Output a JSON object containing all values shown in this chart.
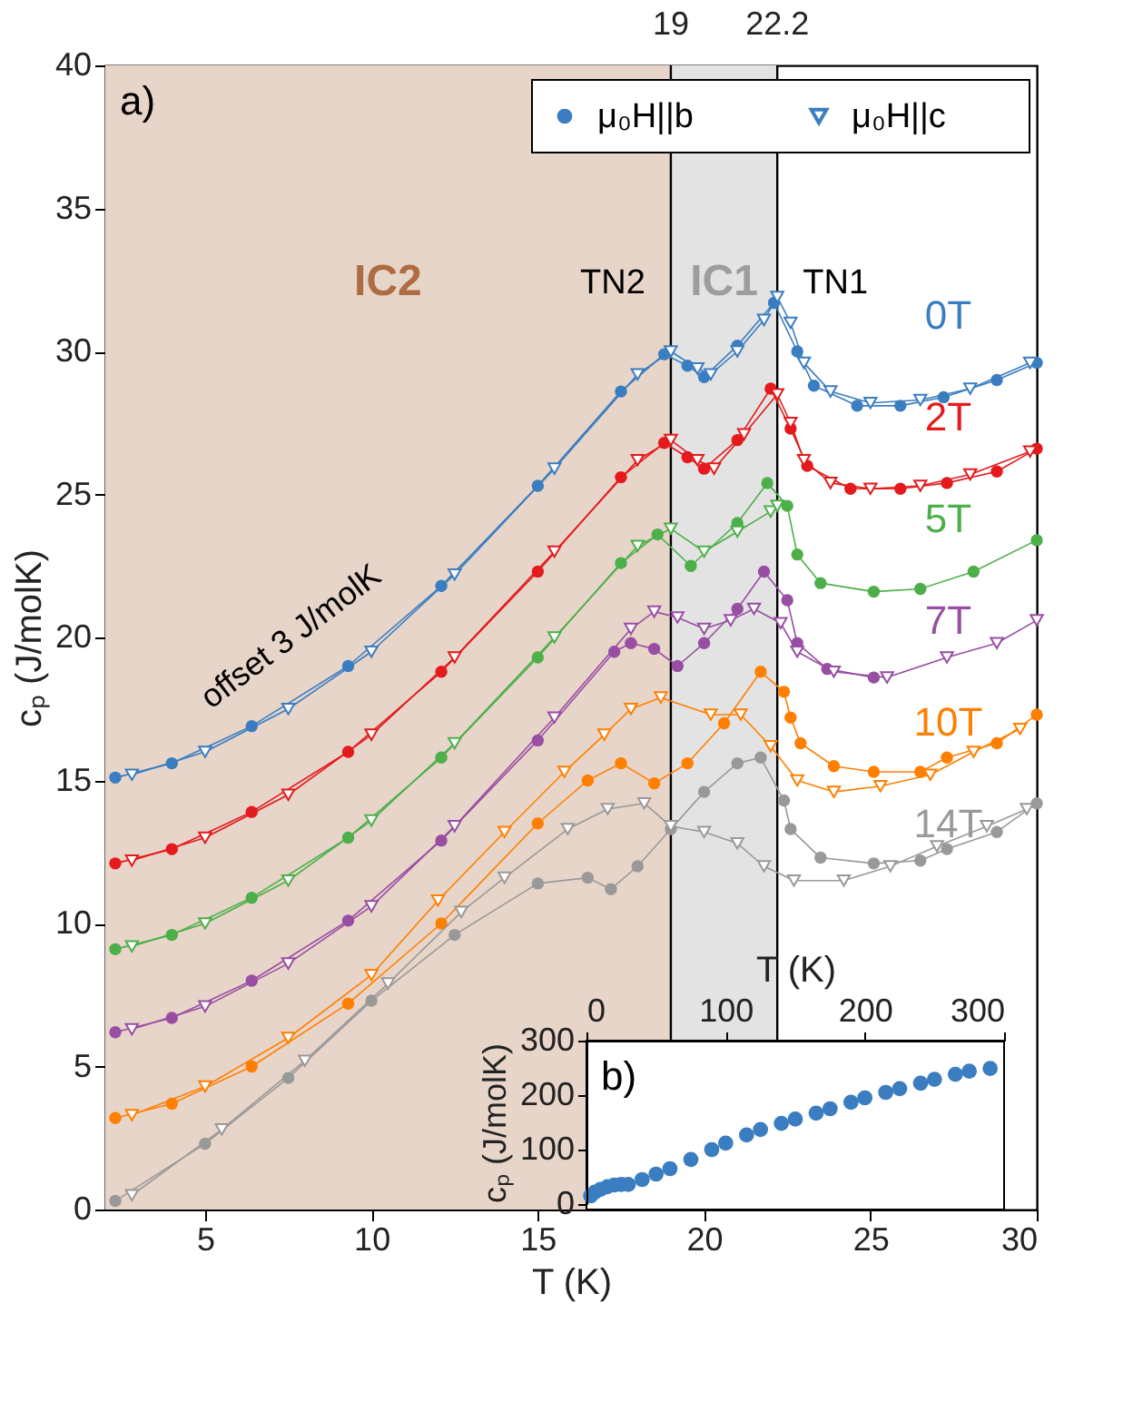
{
  "chart_data": [
    {
      "type": "line",
      "title": "a)",
      "xlabel": "T (K)",
      "ylabel": "cₚ (J/molK)",
      "xlim": [
        2,
        30
      ],
      "xticks": [
        5,
        10,
        15,
        20,
        25,
        30
      ],
      "ylim": [
        0,
        40
      ],
      "yticks": [
        0,
        5,
        10,
        15,
        20,
        25,
        30,
        35,
        40
      ],
      "legend": "top right",
      "series": [
        {
          "name": "μ₀H||b",
          "color": "#3a7dc0",
          "marker": "circle",
          "x": [
            2.3,
            4,
            6.4,
            9.3,
            12.1,
            15,
            17.5,
            18.8,
            19.5,
            20.0,
            21,
            22.1,
            22.8,
            23.3,
            24.6,
            25.9,
            27.2,
            28.8,
            30
          ],
          "values": [
            15.1,
            15.6,
            16.9,
            19.0,
            21.8,
            25.3,
            28.6,
            29.9,
            29.5,
            29.1,
            30.2,
            31.7,
            30.0,
            28.8,
            28.1,
            28.1,
            28.4,
            29.0,
            29.6
          ]
        },
        {
          "name": "μ₀H||c",
          "color": "#3a7dc0",
          "marker": "triangle",
          "x": [
            2.8,
            5,
            7.5,
            10,
            12.5,
            15.5,
            18,
            19,
            19.8,
            20.2,
            21,
            21.8,
            22.2,
            22.6,
            23,
            23.8,
            25,
            26.5,
            28,
            29.8
          ],
          "values": [
            15.2,
            16.0,
            17.5,
            19.5,
            22.2,
            25.9,
            29.2,
            30.0,
            29.4,
            29.2,
            30.0,
            31.1,
            31.9,
            31.0,
            29.6,
            28.6,
            28.2,
            28.3,
            28.7,
            29.6
          ]
        },
        {
          "color": "#e41a1c",
          "marker": "circle",
          "x": [
            2.3,
            4,
            6.4,
            9.3,
            12.1,
            15,
            17.5,
            18.8,
            19.5,
            20,
            21,
            22,
            22.6,
            23.1,
            24.4,
            25.9,
            27.3,
            28.8,
            30
          ],
          "values": [
            12.1,
            12.6,
            13.9,
            16.0,
            18.8,
            22.3,
            25.6,
            26.8,
            26.3,
            25.9,
            26.9,
            28.7,
            27.3,
            26.0,
            25.2,
            25.2,
            25.4,
            25.8,
            26.6
          ]
        },
        {
          "color": "#e41a1c",
          "marker": "triangle",
          "x": [
            2.8,
            5,
            7.5,
            10,
            12.5,
            15.5,
            18,
            19,
            19.8,
            20.3,
            21.2,
            22.2,
            22.6,
            23,
            23.8,
            25,
            26.5,
            28,
            29.8
          ],
          "values": [
            12.2,
            13.0,
            14.5,
            16.6,
            19.3,
            23.0,
            26.2,
            26.9,
            26.2,
            25.9,
            27.1,
            28.5,
            27.5,
            26.2,
            25.4,
            25.2,
            25.3,
            25.7,
            26.5
          ]
        },
        {
          "color": "#4daf4a",
          "marker": "circle",
          "x": [
            2.3,
            4,
            6.4,
            9.3,
            12.1,
            15,
            17.5,
            18.6,
            19.6,
            21,
            21.9,
            22.5,
            22.8,
            23.5,
            25.1,
            26.5,
            28.1,
            30
          ],
          "values": [
            9.1,
            9.6,
            10.9,
            13.0,
            15.8,
            19.3,
            22.6,
            23.6,
            22.5,
            24.0,
            25.4,
            24.6,
            22.9,
            21.9,
            21.6,
            21.7,
            22.3,
            23.4
          ]
        },
        {
          "color": "#4daf4a",
          "marker": "triangle",
          "x": [
            2.8,
            5,
            7.5,
            10,
            12.5,
            15.5,
            18,
            19,
            20,
            21,
            22,
            22.2
          ],
          "values": [
            9.2,
            10.0,
            11.5,
            13.6,
            16.3,
            20.0,
            23.2,
            23.8,
            23.0,
            23.7,
            24.4,
            24.6
          ]
        },
        {
          "color": "#984ea3",
          "marker": "circle",
          "x": [
            2.3,
            4,
            6.4,
            9.3,
            12.1,
            15,
            17.3,
            17.8,
            18.5,
            19.2,
            20,
            21,
            21.8,
            22.5,
            22.8,
            23.7,
            25.1
          ],
          "values": [
            6.2,
            6.7,
            8.0,
            10.1,
            12.9,
            16.4,
            19.5,
            19.8,
            19.6,
            19.0,
            19.8,
            21.0,
            22.3,
            21.3,
            19.8,
            18.9,
            18.6
          ]
        },
        {
          "color": "#984ea3",
          "marker": "triangle",
          "x": [
            2.8,
            5,
            7.5,
            10,
            12.5,
            15.5,
            17.8,
            18.5,
            19.2,
            20,
            20.8,
            21.5,
            22.3,
            22.8,
            23.9,
            25.5,
            27.3,
            28.8,
            30
          ],
          "values": [
            6.3,
            7.1,
            8.6,
            10.6,
            13.4,
            17.2,
            20.3,
            20.9,
            20.7,
            20.3,
            20.6,
            21.0,
            20.5,
            19.5,
            18.8,
            18.6,
            19.3,
            19.8,
            20.6
          ]
        },
        {
          "color": "#ff7f00",
          "marker": "circle",
          "x": [
            2.3,
            4,
            6.4,
            9.3,
            12.1,
            15,
            16.5,
            17.5,
            18.5,
            19.5,
            20.6,
            21.7,
            22.4,
            22.6,
            22.9,
            23.9,
            25.1,
            26.5,
            27.3,
            28.8,
            30
          ],
          "values": [
            3.2,
            3.7,
            5.0,
            7.2,
            10.0,
            13.5,
            15.0,
            15.6,
            14.9,
            15.6,
            17.0,
            18.8,
            18.1,
            17.2,
            16.3,
            15.5,
            15.3,
            15.3,
            15.8,
            16.3,
            17.3
          ]
        },
        {
          "color": "#ff7f00",
          "marker": "triangle",
          "x": [
            2.8,
            5,
            7.5,
            10,
            12,
            14,
            15.8,
            17,
            17.8,
            18.7,
            20.2,
            21.1,
            22,
            22.8,
            23.9,
            25.3,
            26.8,
            28.1,
            29.5
          ],
          "values": [
            3.3,
            4.3,
            6.0,
            8.2,
            10.8,
            13.2,
            15.3,
            16.6,
            17.5,
            17.9,
            17.3,
            17.3,
            16.2,
            15.0,
            14.6,
            14.8,
            15.2,
            16.0,
            16.8
          ]
        },
        {
          "color": "#999999",
          "marker": "circle",
          "x": [
            2.3,
            5,
            7.5,
            10,
            12.5,
            15,
            16.5,
            17.2,
            18,
            19,
            20,
            21,
            21.7,
            22.4,
            22.6,
            23.5,
            25.1,
            26.5,
            27.3,
            28.8,
            30
          ],
          "values": [
            0.3,
            2.3,
            4.6,
            7.3,
            9.6,
            11.4,
            11.6,
            11.2,
            12.0,
            13.3,
            14.6,
            15.6,
            15.8,
            14.3,
            13.3,
            12.3,
            12.1,
            12.2,
            12.6,
            13.2,
            14.2
          ]
        },
        {
          "color": "#999999",
          "marker": "triangle",
          "x": [
            2.8,
            5.5,
            8,
            10.5,
            12.7,
            14,
            15.9,
            17.1,
            18.2,
            19,
            20,
            21,
            21.8,
            22.7,
            24.2,
            25.6,
            27,
            28.5,
            29.7
          ],
          "values": [
            0.5,
            2.8,
            5.2,
            7.9,
            10.4,
            11.6,
            13.3,
            14.0,
            14.2,
            13.4,
            13.2,
            12.8,
            12.0,
            11.5,
            11.5,
            12.0,
            12.7,
            13.4,
            14.0
          ]
        }
      ],
      "bands": [
        {
          "axis": "x",
          "from": 2,
          "to": 19,
          "label": "IC2",
          "color": "#e8d5c9"
        },
        {
          "axis": "x",
          "from": 19,
          "to": 22.2,
          "label": "IC1",
          "color": "#e3e3e3"
        }
      ],
      "ref_lines": [
        {
          "axis": "x",
          "value": 19,
          "label": "19"
        },
        {
          "axis": "x",
          "value": 22.2,
          "label": "22.2"
        }
      ],
      "annotations": [
        "0T",
        "2T",
        "5T",
        "7T",
        "10T",
        "14T",
        "TN2",
        "TN1",
        "offset 3 J/molK"
      ]
    },
    {
      "type": "scatter",
      "title": "b)",
      "xlabel": "T (K)",
      "ylabel": "cₚ (J/molK)",
      "marker": "circle",
      "xlim": [
        0,
        300
      ],
      "xticks": [
        0,
        100,
        200,
        300
      ],
      "ylim": [
        0,
        300
      ],
      "yticks": [
        0,
        100,
        200,
        300
      ],
      "x": [
        3,
        6,
        10,
        15,
        20,
        25,
        30,
        40,
        50,
        60,
        75,
        90,
        100,
        115,
        125,
        140,
        150,
        165,
        175,
        190,
        200,
        215,
        225,
        240,
        250,
        265,
        275,
        290
      ],
      "series": [
        {
          "color": "#3a7dc0",
          "values": [
            15,
            22,
            27,
            32,
            35,
            36,
            36,
            45,
            55,
            65,
            82,
            100,
            112,
            127,
            137,
            148,
            156,
            167,
            175,
            187,
            195,
            205,
            212,
            222,
            229,
            238,
            244,
            249
          ]
        }
      ]
    }
  ]
}
